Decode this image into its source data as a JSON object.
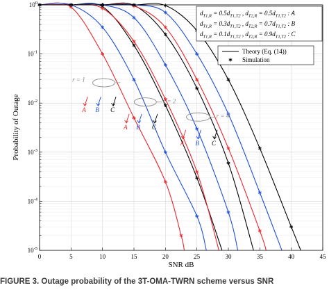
{
  "chart_data": {
    "type": "line",
    "xlabel": "SNR dB",
    "ylabel": "Probability of Outage",
    "xlim": [
      0,
      45
    ],
    "ylim": [
      1e-05,
      1
    ],
    "yscale": "log",
    "grid": true,
    "x_ticks": [
      "0",
      "5",
      "10",
      "15",
      "20",
      "25",
      "30",
      "35",
      "40",
      "45"
    ],
    "y_ticks": [
      {
        "base": "10",
        "exp": "0"
      },
      {
        "base": "10",
        "exp": "-1"
      },
      {
        "base": "10",
        "exp": "-2"
      },
      {
        "base": "10",
        "exp": "-3"
      },
      {
        "base": "10",
        "exp": "-4"
      },
      {
        "base": "10",
        "exp": "-5"
      }
    ],
    "legend_cases": [
      {
        "text": "d_T1,R = 0.5d_T1,T2 , d_T2,R = 0.5d_T1,T2 : A",
        "line1": "d",
        "sub1": "T1,R",
        "mid1": " = 0.5d",
        "sub2": "T1,T2",
        "mid2": " , d",
        "sub3": "T2,R",
        "mid3": " = 0.5d",
        "sub4": "T1,T2",
        "tail": " : A",
        "color": "#e8262b"
      },
      {
        "text": "d_T1,R = 0.3d_T1,T2 , d_T2,R = 0.7d_T1,T2 : B",
        "line1": "d",
        "sub1": "T1,R",
        "mid1": " = 0.3d",
        "sub2": "T1,T2",
        "mid2": " , d",
        "sub3": "T2,R",
        "mid3": " = 0.7d",
        "sub4": "T1,T2",
        "tail": " : B",
        "color": "#1f4fd6"
      },
      {
        "text": "d_T1,R = 0.1d_T1,T2 , d_T2,R = 0.9d_T1,T2 : C",
        "line1": "d",
        "sub1": "T1,R",
        "mid1": " = 0.1d",
        "sub2": "T1,T2",
        "mid2": " , d",
        "sub3": "T2,R",
        "mid3": " = 0.9d",
        "sub4": "T1,T2",
        "tail": " : C",
        "color": "#000000"
      }
    ],
    "legend_theory": "Theory (Eq. (14))",
    "legend_sim": "Simulation",
    "groups": [
      {
        "label": "r = 1",
        "letters": [
          "A",
          "B",
          "C"
        ]
      },
      {
        "label": "r = 2",
        "letters": [
          "A",
          "B",
          "C"
        ]
      },
      {
        "label": "r = 4",
        "letters": [
          "A",
          "B",
          "C"
        ]
      }
    ],
    "series": [
      {
        "r": 1,
        "case": "A",
        "color": "#e8262b",
        "points": [
          [
            0,
            1
          ],
          [
            5,
            0.9
          ],
          [
            10,
            0.1
          ],
          [
            15,
            0.005
          ],
          [
            20,
            0.00025
          ],
          [
            22.5,
            2e-05
          ],
          [
            23,
            1e-05
          ]
        ]
      },
      {
        "r": 1,
        "case": "B",
        "color": "#1f4fd6",
        "points": [
          [
            0,
            1
          ],
          [
            5,
            1
          ],
          [
            10,
            0.35
          ],
          [
            15,
            0.03
          ],
          [
            20,
            0.001
          ],
          [
            25,
            5e-05
          ],
          [
            26.5,
            1e-05
          ]
        ]
      },
      {
        "r": 1,
        "case": "C",
        "color": "#000000",
        "points": [
          [
            0,
            1
          ],
          [
            5,
            1
          ],
          [
            10,
            0.92
          ],
          [
            15,
            0.15
          ],
          [
            20,
            0.009
          ],
          [
            25,
            0.0003
          ],
          [
            29,
            1e-05
          ]
        ]
      },
      {
        "r": 2,
        "case": "A",
        "color": "#e8262b",
        "points": [
          [
            0,
            1
          ],
          [
            5,
            1
          ],
          [
            10,
            0.85
          ],
          [
            15,
            0.18
          ],
          [
            20,
            0.012
          ],
          [
            25,
            0.0004
          ],
          [
            28.5,
            1e-05
          ]
        ]
      },
      {
        "r": 2,
        "case": "B",
        "color": "#1f4fd6",
        "points": [
          [
            0,
            1
          ],
          [
            5,
            1
          ],
          [
            10,
            1
          ],
          [
            15,
            0.55
          ],
          [
            20,
            0.06
          ],
          [
            25,
            0.003
          ],
          [
            30,
            6e-05
          ],
          [
            31.5,
            1e-05
          ]
        ]
      },
      {
        "r": 2,
        "case": "C",
        "color": "#000000",
        "points": [
          [
            0,
            1
          ],
          [
            5,
            1
          ],
          [
            10,
            1
          ],
          [
            15,
            0.98
          ],
          [
            20,
            0.25
          ],
          [
            25,
            0.02
          ],
          [
            30,
            0.0006
          ],
          [
            34,
            1e-05
          ]
        ]
      },
      {
        "r": 4,
        "case": "A",
        "color": "#e8262b",
        "points": [
          [
            0,
            1
          ],
          [
            5,
            1
          ],
          [
            10,
            1
          ],
          [
            15,
            0.95
          ],
          [
            20,
            0.35
          ],
          [
            25,
            0.03
          ],
          [
            30,
            0.0012
          ],
          [
            35,
            2.5e-05
          ],
          [
            36,
            1e-05
          ]
        ]
      },
      {
        "r": 4,
        "case": "B",
        "color": "#1f4fd6",
        "points": [
          [
            0,
            1
          ],
          [
            5,
            1
          ],
          [
            10,
            1
          ],
          [
            15,
            1
          ],
          [
            20,
            0.7
          ],
          [
            25,
            0.1
          ],
          [
            30,
            0.006
          ],
          [
            35,
            0.00015
          ],
          [
            38.5,
            1e-05
          ]
        ]
      },
      {
        "r": 4,
        "case": "C",
        "color": "#000000",
        "points": [
          [
            0,
            1
          ],
          [
            5,
            1
          ],
          [
            10,
            1
          ],
          [
            15,
            1
          ],
          [
            20,
            0.97
          ],
          [
            25,
            0.3
          ],
          [
            30,
            0.03
          ],
          [
            35,
            0.0012
          ],
          [
            40,
            3e-05
          ],
          [
            41.5,
            1e-05
          ]
        ]
      }
    ]
  },
  "caption_text": "FIGURE 3. Outage probability of the 3T-OMA-TWRN scheme versus SNR"
}
